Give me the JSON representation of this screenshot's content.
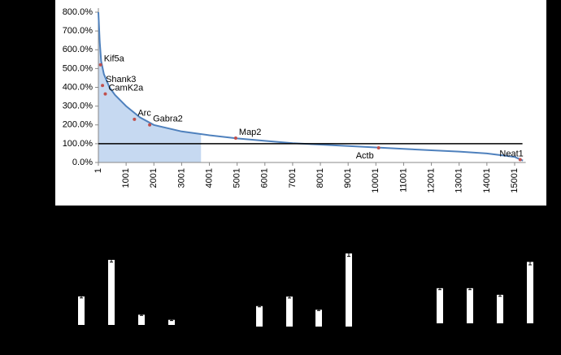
{
  "chart_data": [
    {
      "type": "line",
      "color": "#4f81bd",
      "shade_color": "#c6d9f1",
      "point_color": "#c0504d",
      "x": [
        1,
        50,
        100,
        200,
        400,
        600,
        1000,
        1500,
        2000,
        3000,
        4000,
        5000,
        6000,
        7000,
        8000,
        9000,
        10000,
        11000,
        12000,
        13000,
        14000,
        15000,
        15300
      ],
      "values": [
        800,
        640,
        540,
        470,
        400,
        360,
        300,
        240,
        200,
        165,
        145,
        128,
        115,
        103,
        95,
        88,
        80,
        72,
        65,
        58,
        48,
        30,
        10
      ],
      "xlim": [
        1,
        15400
      ],
      "ylim": [
        0,
        800
      ],
      "xticks": [
        1,
        1001,
        2001,
        3001,
        4001,
        5001,
        6001,
        7001,
        8001,
        9001,
        10001,
        11001,
        12001,
        13001,
        14001,
        15001
      ],
      "yticks": [
        {
          "value": 0,
          "label": "0.0%"
        },
        {
          "value": 100,
          "label": "100.0%"
        },
        {
          "value": 200,
          "label": "200.0%"
        },
        {
          "value": 300,
          "label": "300.0%"
        },
        {
          "value": 400,
          "label": "400.0%"
        },
        {
          "value": 500,
          "label": "500.0%"
        },
        {
          "value": 600,
          "label": "600.0%"
        },
        {
          "value": 700,
          "label": "700.0%"
        },
        {
          "value": 800,
          "label": "800.0%"
        }
      ],
      "reference_line": 100,
      "shade_range": [
        1,
        3700
      ],
      "highlights": [
        {
          "label": "Kif5a",
          "x": 80,
          "value": 520
        },
        {
          "label": "Shank3",
          "x": 150,
          "value": 410
        },
        {
          "label": "CamK2a",
          "x": 250,
          "value": 365
        },
        {
          "label": "Arc",
          "x": 1300,
          "value": 230
        },
        {
          "label": "Gabra2",
          "x": 1850,
          "value": 200
        },
        {
          "label": "Map2",
          "x": 4950,
          "value": 130
        },
        {
          "label": "Actb",
          "x": 10100,
          "value": 78
        },
        {
          "label": "Neat1",
          "x": 15200,
          "value": 15
        }
      ]
    },
    {
      "type": "bar",
      "color": "#ffffff",
      "categories": [
        null,
        null,
        null,
        null
      ],
      "values": [
        39,
        89,
        14,
        7
      ],
      "errors": [
        2,
        3,
        1,
        1
      ],
      "ylim": [
        0,
        100
      ]
    },
    {
      "type": "bar",
      "color": "#ffffff",
      "categories": [
        null,
        null,
        null,
        null
      ],
      "values": [
        28,
        41,
        23,
        100
      ],
      "errors": [
        1,
        2,
        1,
        4
      ],
      "ylim": [
        0,
        100
      ]
    },
    {
      "type": "bar",
      "color": "#ffffff",
      "categories": [
        null,
        null,
        null,
        null
      ],
      "values": [
        48,
        48,
        39,
        84
      ],
      "errors": [
        2,
        2,
        2,
        4
      ],
      "ylim": [
        0,
        100
      ]
    }
  ]
}
